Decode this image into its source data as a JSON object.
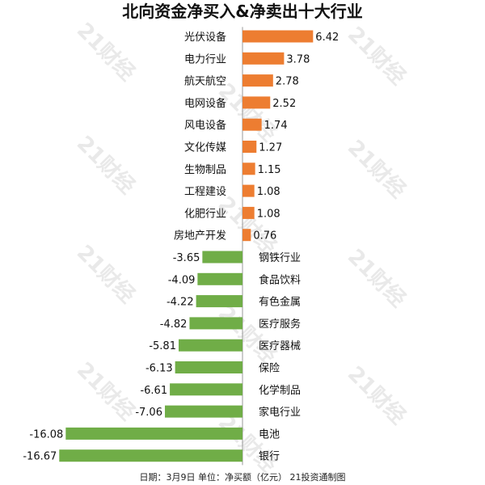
{
  "chart_data": {
    "type": "bar",
    "orientation": "horizontal",
    "title": "北向资金净买入&净卖出十大行业",
    "categories": [
      "光伏设备",
      "电力行业",
      "航天航空",
      "电网设备",
      "风电设备",
      "文化传媒",
      "生物制品",
      "工程建设",
      "化肥行业",
      "房地产开发",
      "钢铁行业",
      "食品饮料",
      "有色金属",
      "医疗服务",
      "医疗器械",
      "保险",
      "化学制品",
      "家电行业",
      "电池",
      "银行"
    ],
    "values": [
      6.42,
      3.78,
      2.78,
      2.52,
      1.74,
      1.27,
      1.15,
      1.08,
      1.08,
      0.76,
      -3.65,
      -4.09,
      -4.22,
      -4.82,
      -5.81,
      -6.13,
      -6.61,
      -7.06,
      -16.08,
      -16.67
    ],
    "value_labels": [
      "6.42",
      "3.78",
      "2.78",
      "2.52",
      "1.74",
      "1.27",
      "1.15",
      "1.08",
      "1.08",
      "0.76",
      "-3.65",
      "-4.09",
      "-4.22",
      "-4.82",
      "-5.81",
      "-6.13",
      "-6.61",
      "-7.06",
      "-16.08",
      "-16.67"
    ],
    "xlabel": "",
    "ylabel": "",
    "xlim": [
      -16.67,
      6.42
    ],
    "grid": false,
    "legend": "none",
    "colors": {
      "positive": "#ED7D31",
      "negative": "#70AD47",
      "axis": "#999999"
    }
  },
  "footer": "日期：3月9日  单位：净买额（亿元）  21投资通制图",
  "watermark_text": "21财经"
}
